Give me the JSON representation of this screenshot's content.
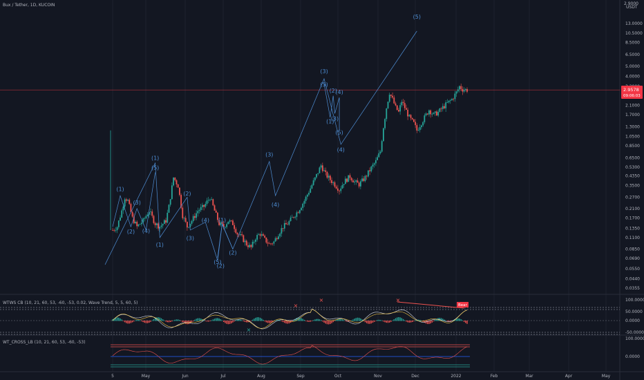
{
  "header": {
    "symbol": "Bux / Tether, 1D, KUCOIN"
  },
  "price_axis": {
    "currency": "USDT",
    "currency_top": "2.9000"
  },
  "indicators": {
    "pane1_title": "WTWS CB (10, 21, 60, 53, -60, -53, 0.02, Wave Trend, 5, 5, 60, 5)",
    "pane2_title": "WT_CROSS_LB (10, 21, 60, 53, -60, -53)",
    "bear_label": "Bear"
  },
  "current_price": {
    "value": "2.9578",
    "countdown": "09:06:03"
  },
  "colors": {
    "background": "#131722",
    "up": "#26a69a",
    "down": "#ef5350",
    "wave": "#4f8fd6",
    "price_tag": "#f23645"
  },
  "chart_data": [
    {
      "type": "candlestick",
      "title": "Bux / Tether, 1D, KUCOIN",
      "scale": "log",
      "x_ticks": [
        "5",
        "May",
        "Jun",
        "Jul",
        "Aug",
        "Sep",
        "Oct",
        "Nov",
        "Dec",
        "2022",
        "Feb",
        "Mar",
        "Apr",
        "May"
      ],
      "y_ticks": [
        13.0,
        10.5,
        8.5,
        6.5,
        5.0,
        4.0,
        3.2,
        2.1,
        1.7,
        1.3,
        1.05,
        0.85,
        0.65,
        0.53,
        0.435,
        0.35,
        0.27,
        0.21,
        0.17,
        0.135,
        0.11,
        0.085,
        0.069,
        0.055,
        0.044,
        0.0355
      ],
      "y_tick_labels": [
        "13.0000",
        "10.5000",
        "8.5000",
        "6.5000",
        "5.0000",
        "4.0000",
        "3.2000",
        "2.1000",
        "1.7000",
        "1.3000",
        "1.0500",
        "0.8500",
        "0.6500",
        "0.5300",
        "0.4350",
        "0.3500",
        "0.2700",
        "0.2100",
        "0.1700",
        "0.1350",
        "0.1100",
        "0.0850",
        "0.0690",
        "0.0550",
        "0.0440",
        "0.0355"
      ],
      "ylim": [
        0.031,
        22.0
      ],
      "price_path": [
        [
          0,
          0.13
        ],
        [
          3,
          0.14
        ],
        [
          6,
          0.2
        ],
        [
          8,
          0.27
        ],
        [
          10,
          0.25
        ],
        [
          13,
          0.17
        ],
        [
          16,
          0.14
        ],
        [
          20,
          0.16
        ],
        [
          24,
          0.2
        ],
        [
          28,
          0.15
        ],
        [
          31,
          0.14
        ],
        [
          35,
          0.16
        ],
        [
          37,
          0.22
        ],
        [
          40,
          0.42
        ],
        [
          43,
          0.35
        ],
        [
          46,
          0.18
        ],
        [
          49,
          0.14
        ],
        [
          52,
          0.16
        ],
        [
          56,
          0.2
        ],
        [
          60,
          0.22
        ],
        [
          64,
          0.27
        ],
        [
          67,
          0.2
        ],
        [
          70,
          0.15
        ],
        [
          73,
          0.14
        ],
        [
          76,
          0.16
        ],
        [
          79,
          0.15
        ],
        [
          82,
          0.12
        ],
        [
          85,
          0.11
        ],
        [
          88,
          0.095
        ],
        [
          91,
          0.088
        ],
        [
          94,
          0.11
        ],
        [
          97,
          0.12
        ],
        [
          100,
          0.105
        ],
        [
          103,
          0.095
        ],
        [
          106,
          0.1
        ],
        [
          109,
          0.12
        ],
        [
          112,
          0.14
        ],
        [
          115,
          0.15
        ],
        [
          118,
          0.17
        ],
        [
          122,
          0.2
        ],
        [
          126,
          0.25
        ],
        [
          130,
          0.33
        ],
        [
          134,
          0.44
        ],
        [
          137,
          0.55
        ],
        [
          140,
          0.45
        ],
        [
          143,
          0.4
        ],
        [
          146,
          0.36
        ],
        [
          149,
          0.32
        ],
        [
          152,
          0.38
        ],
        [
          156,
          0.43
        ],
        [
          159,
          0.38
        ],
        [
          162,
          0.36
        ],
        [
          166,
          0.42
        ],
        [
          170,
          0.52
        ],
        [
          173,
          0.6
        ],
        [
          176,
          0.75
        ],
        [
          178,
          1.3
        ],
        [
          180,
          2.0
        ],
        [
          182,
          2.8
        ],
        [
          184,
          2.4
        ],
        [
          186,
          2.0
        ],
        [
          188,
          1.8
        ],
        [
          190,
          2.3
        ],
        [
          192,
          2.0
        ],
        [
          195,
          1.6
        ],
        [
          198,
          1.4
        ],
        [
          200,
          1.2
        ],
        [
          202,
          1.35
        ],
        [
          205,
          1.6
        ],
        [
          208,
          1.9
        ],
        [
          211,
          1.7
        ],
        [
          214,
          1.8
        ],
        [
          217,
          2.0
        ],
        [
          220,
          2.2
        ],
        [
          223,
          2.4
        ],
        [
          226,
          2.8
        ],
        [
          228,
          3.2
        ],
        [
          230,
          3.0
        ],
        [
          233,
          2.96
        ]
      ],
      "wave_labels": [
        {
          "text": "(1)",
          "x": 5,
          "y": 0.31
        },
        {
          "text": "(2)",
          "x": 12,
          "y": 0.12
        },
        {
          "text": "(3)",
          "x": 16,
          "y": 0.23
        },
        {
          "text": "(4)",
          "x": 22,
          "y": 0.122
        },
        {
          "text": "(5)",
          "x": 28,
          "y": 0.5
        },
        {
          "text": "(1)",
          "x": 28,
          "y": 0.62
        },
        {
          "text": "(1)",
          "x": 31,
          "y": 0.09
        },
        {
          "text": "(2)",
          "x": 49,
          "y": 0.28
        },
        {
          "text": "(3)",
          "x": 51,
          "y": 0.104
        },
        {
          "text": "(4)",
          "x": 61,
          "y": 0.155
        },
        {
          "text": "(5)",
          "x": 69,
          "y": 0.061
        },
        {
          "text": "(2)",
          "x": 71,
          "y": 0.056
        },
        {
          "text": "(1)",
          "x": 72,
          "y": 0.155
        },
        {
          "text": "(2)",
          "x": 79,
          "y": 0.075
        },
        {
          "text": "(3)",
          "x": 103,
          "y": 0.67
        },
        {
          "text": "(4)",
          "x": 107,
          "y": 0.22
        },
        {
          "text": "(3)",
          "x": 139,
          "y": 4.3
        },
        {
          "text": "(5)",
          "x": 139,
          "y": 3.2
        },
        {
          "text": "(2)",
          "x": 145,
          "y": 2.8
        },
        {
          "text": "(4)",
          "x": 149,
          "y": 2.7
        },
        {
          "text": "(1)",
          "x": 143,
          "y": 1.4
        },
        {
          "text": "(3)",
          "x": 146,
          "y": 1.5
        },
        {
          "text": "(5)",
          "x": 149,
          "y": 1.1
        },
        {
          "text": "(4)",
          "x": 150,
          "y": 0.75
        },
        {
          "text": "(5)",
          "x": 200,
          "y": 14.5
        }
      ]
    }
  ]
}
